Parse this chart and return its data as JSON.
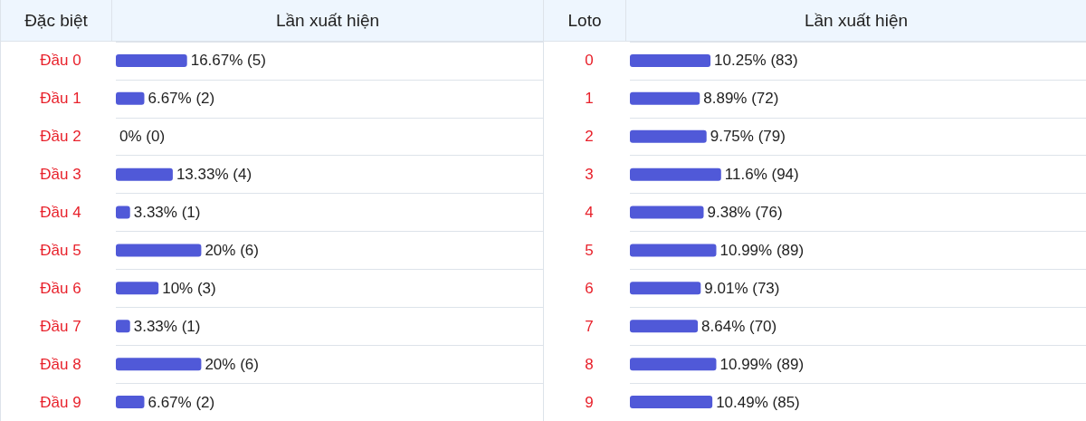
{
  "chart_data": [
    {
      "type": "bar",
      "orientation": "horizontal",
      "ylabel": "Đặc biệt",
      "xlabel": "Lần xuất hiện",
      "grid": "y",
      "categories": [
        "Đầu 0",
        "Đầu 1",
        "Đầu 2",
        "Đầu 3",
        "Đầu 4",
        "Đầu 5",
        "Đầu 6",
        "Đầu 7",
        "Đầu 8",
        "Đầu 9"
      ],
      "series": [
        {
          "color": "#5059d8",
          "values": [
            16.67,
            6.67,
            0,
            13.33,
            3.33,
            20,
            10,
            3.33,
            20,
            6.67
          ],
          "value_labels": [
            "16.67% (5)",
            "6.67% (2)",
            "0% (0)",
            "13.33% (4)",
            "3.33% (1)",
            "20% (6)",
            "10% (3)",
            "3.33% (1)",
            "20% (6)",
            "6.67% (2)"
          ]
        }
      ]
    },
    {
      "type": "bar",
      "orientation": "horizontal",
      "ylabel": "Loto",
      "xlabel": "Lần xuất hiện",
      "grid": "y",
      "categories": [
        "0",
        "1",
        "2",
        "3",
        "4",
        "5",
        "6",
        "7",
        "8",
        "9"
      ],
      "series": [
        {
          "color": "#5059d8",
          "values": [
            10.25,
            8.89,
            9.75,
            11.6,
            9.38,
            10.99,
            9.01,
            8.64,
            10.99,
            10.49
          ],
          "value_labels": [
            "10.25% (83)",
            "8.89% (72)",
            "9.75% (79)",
            "11.6% (94)",
            "9.38% (76)",
            "10.99% (89)",
            "9.01% (73)",
            "8.64% (70)",
            "10.99% (89)",
            "10.49% (85)"
          ]
        }
      ]
    }
  ]
}
